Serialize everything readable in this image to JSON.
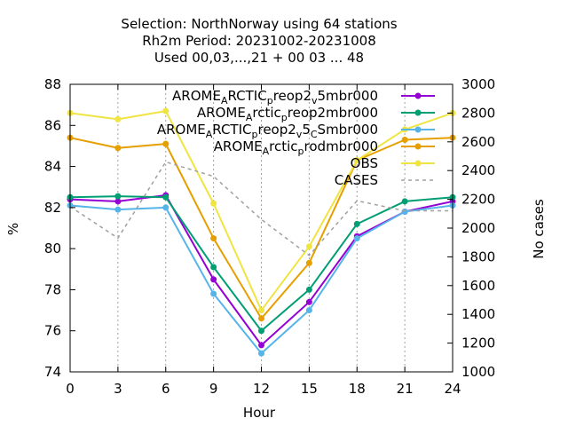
{
  "chart_data": {
    "type": "line",
    "title_lines": [
      "Selection: NorthNorway using    64 stations",
      "Rh2m   Period: 20231002-20231008",
      "Used  00,03,...,21  + 00 03 ... 48"
    ],
    "xlabel": "Hour",
    "ylabel": "%",
    "y2label": "No cases",
    "x": [
      0,
      3,
      6,
      9,
      12,
      15,
      18,
      21,
      24
    ],
    "xticks": [
      "0",
      "3",
      "6",
      "9",
      "12",
      "15",
      "18",
      "21",
      "24"
    ],
    "xlim": [
      0,
      24
    ],
    "ylim": [
      74,
      88
    ],
    "yticks": [
      "74",
      "76",
      "78",
      "80",
      "82",
      "84",
      "86",
      "88"
    ],
    "y2lim": [
      1000,
      3000
    ],
    "y2ticks": [
      "1000",
      "1200",
      "1400",
      "1600",
      "1800",
      "2000",
      "2200",
      "2400",
      "2600",
      "2800",
      "3000"
    ],
    "grid": "vertical dotted at x ticks",
    "legend_position": "top-right",
    "series": [
      {
        "legend": [
          "AROME",
          "A",
          "RCTIC",
          "p",
          "reop2",
          "v",
          "5mbr000"
        ],
        "color": "#9400d3",
        "marker": "circle",
        "axis": "left",
        "values": [
          82.4,
          82.3,
          82.6,
          78.5,
          75.3,
          77.4,
          80.6,
          81.8,
          82.3
        ]
      },
      {
        "legend": [
          "AROME",
          "A",
          "rctic",
          "p",
          "reop2mbr000"
        ],
        "color": "#009e73",
        "marker": "circle",
        "axis": "left",
        "values": [
          82.5,
          82.55,
          82.5,
          79.1,
          76.0,
          78.0,
          81.2,
          82.3,
          82.5
        ]
      },
      {
        "legend": [
          "AROME",
          "A",
          "RCTIC",
          "p",
          "reop2",
          "v",
          "5",
          "C",
          "Smbr000"
        ],
        "color": "#56b4e9",
        "marker": "circle",
        "axis": "left",
        "values": [
          82.1,
          81.9,
          82.0,
          77.8,
          74.9,
          77.0,
          80.5,
          81.8,
          82.1
        ]
      },
      {
        "legend": [
          "AROME",
          "A",
          "rctic",
          "p",
          "rodmbr000"
        ],
        "color": "#e69f00",
        "marker": "circle",
        "axis": "left",
        "values": [
          85.4,
          84.9,
          85.1,
          80.5,
          76.6,
          79.3,
          84.3,
          85.3,
          85.4
        ]
      },
      {
        "legend": [
          "OBS"
        ],
        "color": "#f0e442",
        "marker": "circle",
        "axis": "left",
        "values": [
          86.6,
          86.3,
          86.7,
          82.2,
          77.0,
          80.1,
          84.3,
          85.8,
          86.6
        ]
      },
      {
        "legend": [
          "CASES"
        ],
        "color": "#a0a0a0",
        "marker": "none",
        "dashed": true,
        "axis": "right",
        "values": [
          2150,
          1930,
          2460,
          2360,
          2060,
          1810,
          2190,
          2120,
          2120
        ]
      }
    ]
  }
}
